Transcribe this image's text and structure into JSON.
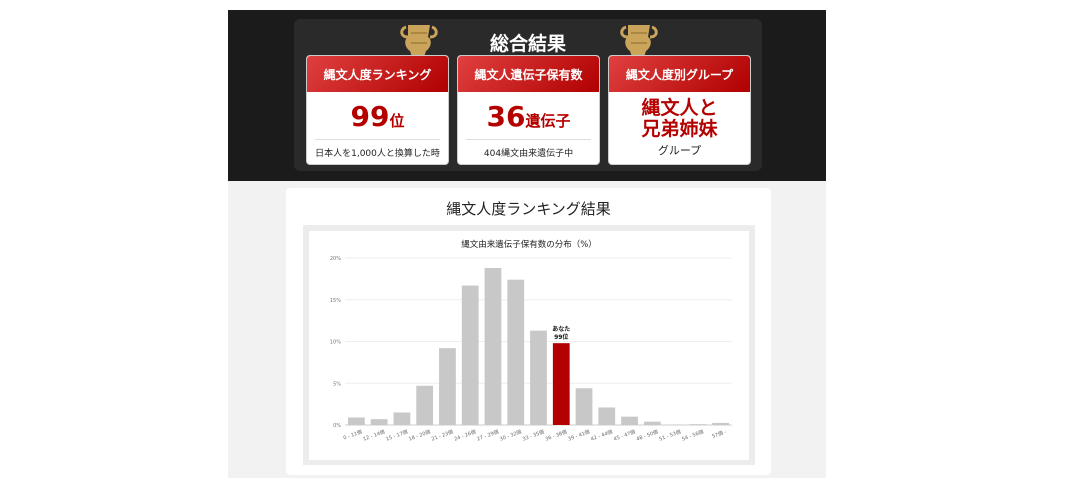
{
  "header": {
    "title": "総合結果"
  },
  "cards": [
    {
      "label": "縄文人度ランキング",
      "value": "99",
      "unit": "位",
      "note": "日本人を1,000人と換算した時"
    },
    {
      "label": "縄文人遺伝子保有数",
      "value": "36",
      "unit": "遺伝子",
      "note": "404縄文由来遺伝子中"
    },
    {
      "label": "縄文人度別グループ",
      "value_line1": "縄文人と",
      "value_line2": "兄弟姉妹",
      "note": "グループ"
    }
  ],
  "section": {
    "title": "縄文人度ランキング結果"
  },
  "colors": {
    "bar": "#c8c8c8",
    "highlight": "#b30000",
    "accent": "#b50000"
  },
  "chart_data": {
    "type": "bar",
    "title": "縄文由来遺伝子保有数の分布（%）",
    "categories": [
      "0 - 11個",
      "12 - 14個",
      "15 - 17個",
      "18 - 20個",
      "21 - 23個",
      "24 - 26個",
      "27 - 29個",
      "30 - 32個",
      "33 - 35個",
      "36 - 38個",
      "39 - 41個",
      "42 - 44個",
      "45 - 47個",
      "48 - 50個",
      "51 - 53個",
      "54 - 56個",
      "57個 -"
    ],
    "values": [
      0.9,
      0.7,
      1.5,
      4.7,
      9.2,
      16.7,
      18.8,
      17.4,
      11.3,
      9.8,
      4.4,
      2.1,
      1.0,
      0.4,
      0.05,
      0.1,
      0.25
    ],
    "yticks": [
      "0%",
      "5%",
      "10%",
      "15%",
      "20%"
    ],
    "ylim": [
      0,
      20
    ],
    "grid": true,
    "highlight_index": 9,
    "annotation": [
      "あなた",
      "99位"
    ]
  }
}
